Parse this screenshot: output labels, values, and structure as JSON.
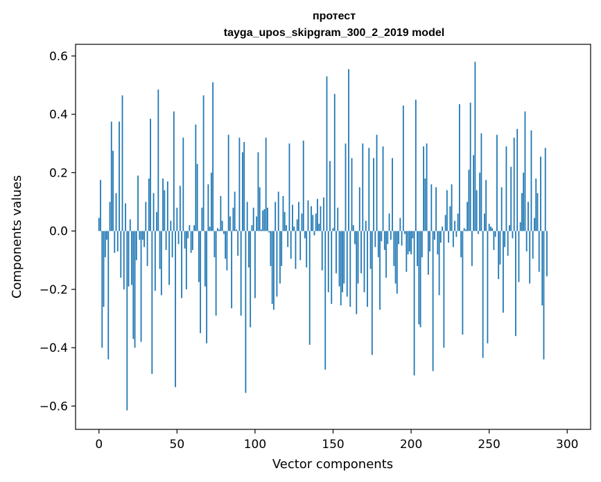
{
  "chart_data": {
    "type": "bar",
    "title": "протест",
    "subtitle": "tayga_upos_skipgram_300_2_2019 model",
    "xlabel": "Vector components",
    "ylabel": "Components values",
    "xlim": [
      -15,
      315
    ],
    "ylim": [
      -0.68,
      0.64
    ],
    "xticks": [
      0,
      50,
      100,
      150,
      200,
      250,
      300
    ],
    "xtick_labels": [
      "0",
      "50",
      "100",
      "150",
      "200",
      "250",
      "300"
    ],
    "yticks": [
      -0.6,
      -0.4,
      -0.2,
      0.0,
      0.2,
      0.4,
      0.6
    ],
    "ytick_labels": [
      "−0.6",
      "−0.4",
      "−0.2",
      "0.0",
      "0.2",
      "0.4",
      "0.6"
    ],
    "grid": false,
    "color": "#1f77b4",
    "x_start": 0,
    "values": [
      0.045,
      0.175,
      -0.4,
      -0.26,
      -0.09,
      -0.03,
      -0.44,
      0.1,
      0.375,
      0.275,
      -0.075,
      0.13,
      -0.07,
      0.375,
      -0.16,
      0.465,
      -0.2,
      0.095,
      -0.615,
      -0.19,
      0.04,
      -0.185,
      -0.37,
      -0.4,
      -0.1,
      0.19,
      -0.03,
      -0.38,
      -0.03,
      -0.055,
      0.1,
      -0.12,
      0.18,
      0.385,
      -0.49,
      0.13,
      -0.205,
      0.065,
      0.485,
      -0.13,
      -0.22,
      0.18,
      0.14,
      -0.065,
      0.17,
      -0.185,
      0.035,
      -0.09,
      0.41,
      -0.535,
      0.08,
      -0.045,
      0.155,
      -0.23,
      0.32,
      -0.06,
      -0.2,
      -0.025,
      0.02,
      -0.075,
      -0.065,
      0.02,
      0.365,
      0.23,
      -0.175,
      -0.35,
      0.08,
      0.465,
      -0.19,
      -0.385,
      0.16,
      0.015,
      0.2,
      0.51,
      -0.09,
      -0.29,
      0.01,
      0.005,
      0.12,
      0.035,
      -0.01,
      -0.095,
      -0.135,
      0.33,
      0.05,
      -0.265,
      0.08,
      0.135,
      0.005,
      -0.085,
      0.32,
      -0.29,
      0.27,
      0.305,
      -0.555,
      0.1,
      -0.125,
      -0.33,
      0.02,
      0.08,
      -0.23,
      0.05,
      0.27,
      0.15,
      0.005,
      0.07,
      0.075,
      0.32,
      0.08,
      -0.005,
      -0.12,
      -0.25,
      -0.27,
      0.1,
      -0.225,
      0.135,
      -0.18,
      -0.12,
      0.12,
      0.065,
      0.02,
      -0.055,
      0.3,
      -0.095,
      0.09,
      0.015,
      -0.13,
      0.04,
      0.1,
      -0.1,
      0.06,
      0.31,
      -0.025,
      -0.125,
      0.105,
      -0.39,
      0.085,
      0.055,
      -0.015,
      0.06,
      0.11,
      0.025,
      0.085,
      -0.135,
      0.115,
      -0.475,
      0.53,
      -0.21,
      0.24,
      -0.25,
      0.01,
      0.47,
      -0.145,
      0.08,
      -0.19,
      -0.255,
      -0.21,
      -0.18,
      0.3,
      -0.225,
      0.555,
      -0.26,
      0.25,
      0.02,
      -0.045,
      -0.285,
      -0.18,
      0.15,
      -0.145,
      0.3,
      -0.21,
      0.035,
      -0.26,
      0.285,
      -0.13,
      -0.425,
      0.25,
      -0.055,
      0.33,
      -0.09,
      -0.27,
      -0.035,
      0.29,
      -0.065,
      -0.16,
      -0.045,
      0.06,
      -0.03,
      0.25,
      -0.12,
      -0.18,
      -0.215,
      -0.045,
      0.045,
      -0.05,
      0.43,
      -0.01,
      -0.14,
      -0.08,
      -0.07,
      -0.08,
      -0.025,
      -0.495,
      0.45,
      -0.12,
      -0.32,
      -0.33,
      -0.09,
      0.29,
      0.18,
      0.3,
      -0.15,
      -0.07,
      0.16,
      -0.48,
      -0.03,
      0.15,
      -0.08,
      -0.22,
      -0.04,
      0.015,
      -0.4,
      0.055,
      0.14,
      -0.04,
      0.085,
      0.16,
      -0.055,
      0.035,
      -0.02,
      0.06,
      0.435,
      -0.09,
      -0.355,
      0.01,
      0.005,
      0.1,
      0.21,
      0.44,
      -0.12,
      0.26,
      0.58,
      0.14,
      -0.01,
      0.2,
      0.335,
      -0.435,
      0.06,
      0.175,
      -0.385,
      0.025,
      0.015,
      0.01,
      -0.065,
      -0.02,
      0.33,
      -0.165,
      -0.115,
      0.15,
      -0.28,
      -0.055,
      0.29,
      -0.085,
      0.02,
      0.22,
      -0.025,
      0.32,
      -0.36,
      0.35,
      -0.175,
      0.03,
      0.13,
      0.2,
      0.41,
      -0.07,
      0.1,
      -0.18,
      0.345,
      -0.095,
      0.045,
      0.18,
      0.13,
      -0.14,
      0.255,
      -0.255,
      -0.44,
      0.285,
      -0.155
    ]
  }
}
